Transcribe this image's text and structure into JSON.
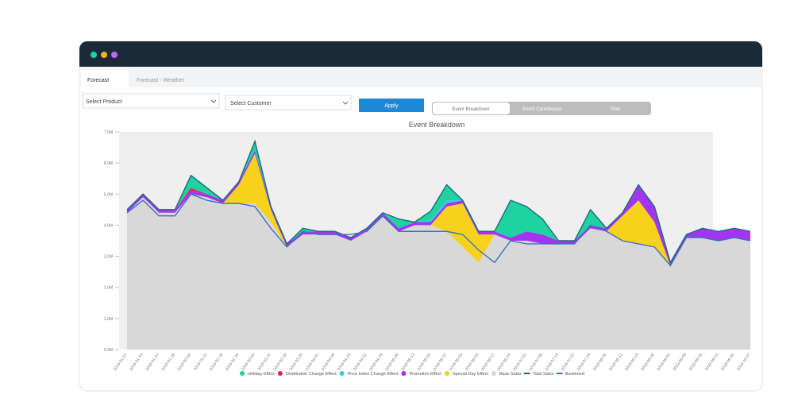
{
  "tabs": [
    "Forecast",
    "Forecast - Weather"
  ],
  "controls": {
    "product": "Select Product",
    "customer": "Select Customer",
    "apply": "Apply",
    "views": [
      "Event Breakdown",
      "Event Contribution",
      "Plan"
    ]
  },
  "chart_data": {
    "type": "stacked-area",
    "title": "Event Breakdown",
    "categories": [
      "2019-01-07",
      "2019-01-14",
      "2019-01-21",
      "2019-01-28",
      "2019-02-04",
      "2019-02-11",
      "2019-02-18",
      "2019-02-25",
      "2019-03-04",
      "2019-03-11",
      "2019-03-18",
      "2019-03-25",
      "2019-04-01",
      "2019-04-08",
      "2019-04-15",
      "2019-04-22",
      "2019-04-29",
      "2019-05-06",
      "2019-05-13",
      "2019-05-20",
      "2019-05-27",
      "2019-06-03",
      "2019-06-10",
      "2019-06-17",
      "2019-06-24",
      "2019-07-01",
      "2019-07-08",
      "2019-07-15",
      "2019-07-22",
      "2019-07-29",
      "2019-08-05",
      "2019-08-12",
      "2019-08-19",
      "2019-08-26",
      "2019-09-02",
      "2019-09-09",
      "2019-09-16",
      "2019-09-23",
      "2019-09-30",
      "2019-10-07"
    ],
    "ylim": [
      0,
      7
    ],
    "yticks": [
      {
        "value": 0,
        "label": "0.0M"
      },
      {
        "value": 1,
        "label": "1.0M"
      },
      {
        "value": 2,
        "label": "2.0M"
      },
      {
        "value": 3,
        "label": "3.0M"
      },
      {
        "value": 4,
        "label": "4.0M"
      },
      {
        "value": 5,
        "label": "5.0M"
      },
      {
        "value": 6,
        "label": "6.0M"
      },
      {
        "value": 7,
        "label": "7.0M"
      }
    ],
    "series": [
      {
        "name": "Holiday Effect",
        "color": "#1fd3a0",
        "kind": "area",
        "values": [
          0,
          0,
          0,
          0,
          0.4,
          0.2,
          0,
          0,
          0.3,
          0,
          0,
          0.1,
          0,
          0,
          0,
          0,
          0,
          0.3,
          0,
          0.3,
          0.5,
          0,
          0,
          0,
          1.2,
          0.8,
          0.5,
          0,
          0,
          0.5,
          0,
          0,
          0,
          0,
          0,
          0,
          0,
          0,
          0,
          0
        ]
      },
      {
        "name": "Distribution Change Effect",
        "color": "#e0245e",
        "kind": "area",
        "values": [
          0,
          0,
          0,
          0,
          0.1,
          0,
          0,
          0,
          0,
          0,
          0,
          0,
          0,
          0,
          0,
          0,
          0,
          0,
          0,
          0,
          0,
          0,
          0,
          0,
          0,
          0,
          0,
          0,
          0,
          0,
          0,
          0,
          0,
          0,
          0,
          0,
          0,
          0,
          0,
          0
        ]
      },
      {
        "name": "Price Index Change Effect",
        "color": "#35c9e8",
        "kind": "area",
        "values": [
          0,
          0,
          0,
          0,
          0,
          0,
          0,
          0,
          0,
          0,
          0,
          0,
          0,
          0,
          0,
          0,
          0,
          0,
          0,
          0.05,
          0.1,
          0,
          0,
          0,
          0,
          0,
          0,
          0,
          0,
          0,
          0,
          0,
          0,
          0,
          0,
          0,
          0,
          0,
          0,
          0
        ]
      },
      {
        "name": "Promotion Effect",
        "color": "#a236f0",
        "kind": "area",
        "values": [
          0.1,
          0.1,
          0.1,
          0.1,
          0.1,
          0.1,
          0.1,
          0.1,
          0.1,
          0.1,
          0.1,
          0.1,
          0.1,
          0.1,
          0.1,
          0.1,
          0.1,
          0.1,
          0.1,
          0.1,
          0.1,
          0.1,
          0.1,
          0.1,
          0.1,
          0.3,
          0.3,
          0.1,
          0.1,
          0.1,
          0.1,
          0.1,
          0.5,
          0.5,
          0.1,
          0.1,
          0.3,
          0.3,
          0.3,
          0.3
        ]
      },
      {
        "name": "Special Day Effect",
        "color": "#f7d21c",
        "kind": "area",
        "values": [
          0,
          0,
          0,
          0,
          0,
          0,
          0,
          0.6,
          1.6,
          0.4,
          0,
          0,
          0,
          0,
          0,
          0,
          0,
          0,
          0,
          0,
          0.8,
          1.4,
          0.9,
          0,
          0,
          0,
          0,
          0,
          0,
          0,
          0,
          0.8,
          1.4,
          0.8,
          0,
          0,
          0,
          0,
          0,
          0
        ]
      },
      {
        "name": "Base Sales",
        "color": "#d8d8d8",
        "kind": "area",
        "values": [
          4.4,
          4.9,
          4.4,
          4.4,
          5.0,
          4.9,
          4.7,
          4.7,
          4.7,
          4.1,
          3.3,
          3.7,
          3.7,
          3.7,
          3.5,
          3.8,
          4.3,
          3.8,
          4.0,
          4.0,
          3.8,
          3.3,
          2.8,
          3.7,
          3.5,
          3.5,
          3.4,
          3.4,
          3.4,
          3.9,
          3.8,
          3.5,
          3.4,
          3.3,
          2.7,
          3.6,
          3.6,
          3.5,
          3.6,
          3.5
        ]
      },
      {
        "name": "Total Sales",
        "color": "#1a6b7a",
        "kind": "line",
        "values": [
          4.5,
          5.0,
          4.5,
          4.5,
          5.6,
          5.2,
          4.8,
          5.4,
          6.7,
          4.6,
          3.4,
          3.9,
          3.8,
          3.8,
          3.6,
          3.9,
          4.4,
          4.2,
          4.1,
          4.45,
          5.3,
          4.8,
          3.8,
          3.8,
          4.8,
          4.6,
          4.2,
          3.5,
          3.5,
          4.5,
          3.9,
          4.4,
          5.3,
          4.6,
          2.8,
          3.7,
          3.9,
          3.8,
          3.9,
          3.8
        ]
      },
      {
        "name": "Baselined",
        "color": "#3a6fc4",
        "kind": "line",
        "values": [
          4.4,
          4.8,
          4.3,
          4.3,
          5.0,
          4.8,
          4.7,
          4.7,
          4.6,
          3.9,
          3.3,
          3.8,
          3.7,
          3.7,
          3.7,
          3.8,
          4.3,
          3.8,
          3.8,
          3.8,
          3.8,
          3.7,
          3.2,
          2.8,
          3.5,
          3.4,
          3.4,
          3.4,
          3.4,
          4.0,
          3.8,
          3.5,
          3.4,
          3.3,
          2.7,
          3.6,
          3.6,
          3.5,
          3.6,
          3.5
        ]
      }
    ]
  }
}
